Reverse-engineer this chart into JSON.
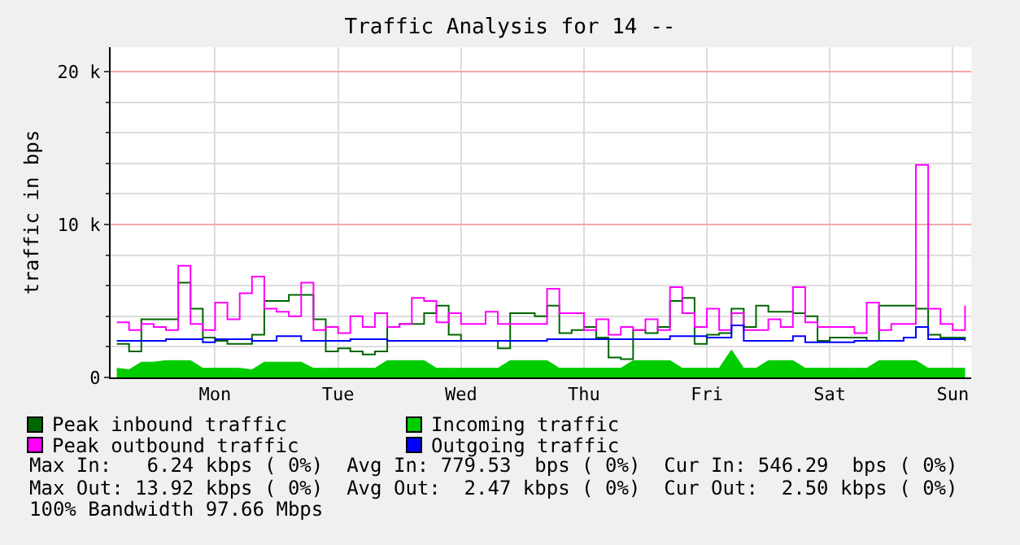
{
  "chart_data": {
    "type": "step",
    "title": "Traffic Analysis for 14 --",
    "ylabel": "traffic in bps",
    "categories": [
      null,
      null,
      null,
      null,
      null,
      null,
      null,
      null,
      "Mon",
      null,
      null,
      null,
      null,
      null,
      null,
      null,
      null,
      null,
      "Tue",
      null,
      null,
      null,
      null,
      null,
      null,
      null,
      null,
      null,
      "Wed",
      null,
      null,
      null,
      null,
      null,
      null,
      null,
      null,
      null,
      "Thu",
      null,
      null,
      null,
      null,
      null,
      null,
      null,
      null,
      null,
      "Fri",
      null,
      null,
      null,
      null,
      null,
      null,
      null,
      null,
      null,
      "Sat",
      null,
      null,
      null,
      null,
      null,
      null,
      null,
      null,
      null,
      "Sun",
      null
    ],
    "ylim": [
      0,
      21600
    ],
    "yticks": [
      {
        "value": 0,
        "label": "0"
      },
      {
        "value": 2000,
        "label": null
      },
      {
        "value": 4000,
        "label": null
      },
      {
        "value": 6000,
        "label": null
      },
      {
        "value": 8000,
        "label": null
      },
      {
        "value": 10000,
        "label": "10 k"
      },
      {
        "value": 12000,
        "label": null
      },
      {
        "value": 14000,
        "label": null
      },
      {
        "value": 16000,
        "label": null
      },
      {
        "value": 18000,
        "label": null
      },
      {
        "value": 20000,
        "label": "20 k"
      }
    ],
    "grid": true,
    "legend": "bottom",
    "marker": "none",
    "line_style": "solid",
    "series": [
      {
        "name": "Peak inbound traffic",
        "color": "#006600",
        "values": [
          2200,
          1700,
          3800,
          3800,
          3800,
          6200,
          4500,
          2600,
          2400,
          2200,
          2200,
          2800,
          5000,
          5000,
          5400,
          5400,
          3800,
          1700,
          1900,
          1700,
          1500,
          1700,
          3300,
          3500,
          3500,
          4200,
          4700,
          2800,
          2400,
          2400,
          2400,
          1900,
          4200,
          4200,
          4000,
          4700,
          2900,
          3100,
          3300,
          2600,
          1300,
          1200,
          3100,
          2900,
          3300,
          5000,
          5200,
          2200,
          2800,
          2900,
          4500,
          3300,
          4700,
          4300,
          4300,
          4200,
          4000,
          2400,
          2600,
          2600,
          2600,
          2400,
          4700,
          4700,
          4700,
          4500,
          2800,
          2600,
          2600,
          2400
        ]
      },
      {
        "name": "Incoming traffic",
        "color": "#00cc00",
        "type": "area",
        "values": [
          600,
          500,
          1000,
          1000,
          1100,
          1100,
          1100,
          600,
          600,
          600,
          600,
          500,
          1000,
          1000,
          1000,
          1000,
          600,
          600,
          600,
          600,
          600,
          600,
          1100,
          1100,
          1100,
          1100,
          600,
          600,
          600,
          600,
          600,
          600,
          1100,
          1100,
          1100,
          1100,
          600,
          600,
          600,
          600,
          600,
          600,
          1100,
          1100,
          1100,
          1100,
          600,
          600,
          600,
          600,
          1800,
          600,
          600,
          1100,
          1100,
          1100,
          600,
          600,
          600,
          600,
          600,
          600,
          1100,
          1100,
          1100,
          1100,
          600,
          600,
          600,
          600
        ]
      },
      {
        "name": "Peak outbound traffic",
        "color": "#ff00ff",
        "values": [
          3600,
          3100,
          3500,
          3300,
          3100,
          7300,
          3500,
          3100,
          4900,
          3800,
          5500,
          6600,
          4500,
          4300,
          4000,
          6200,
          3100,
          3300,
          2900,
          4000,
          3300,
          4200,
          3300,
          3500,
          5200,
          5000,
          3600,
          4200,
          3500,
          3500,
          4300,
          3500,
          3500,
          3500,
          3500,
          5800,
          4200,
          4200,
          3100,
          3800,
          2800,
          3300,
          3100,
          3800,
          3100,
          5900,
          4200,
          3300,
          4500,
          3100,
          4200,
          3100,
          3100,
          3800,
          3300,
          5900,
          3600,
          3300,
          3300,
          3300,
          2900,
          4900,
          3100,
          3500,
          3500,
          13900,
          4500,
          3500,
          3100,
          4700
        ]
      },
      {
        "name": "Outgoing traffic",
        "color": "#0000ff",
        "values": [
          2400,
          2400,
          2400,
          2400,
          2500,
          2500,
          2500,
          2300,
          2500,
          2500,
          2500,
          2400,
          2400,
          2700,
          2700,
          2400,
          2400,
          2400,
          2400,
          2500,
          2500,
          2500,
          2400,
          2400,
          2400,
          2400,
          2400,
          2400,
          2400,
          2400,
          2400,
          2400,
          2400,
          2400,
          2400,
          2500,
          2500,
          2500,
          2500,
          2500,
          2500,
          2500,
          2500,
          2500,
          2500,
          2700,
          2700,
          2700,
          2600,
          2600,
          3400,
          2400,
          2400,
          2400,
          2400,
          2700,
          2300,
          2300,
          2300,
          2300,
          2400,
          2400,
          2400,
          2400,
          2600,
          3300,
          2500,
          2500,
          2500,
          2500
        ]
      }
    ],
    "annotations": [
      "Max In:   6.24 kbps ( 0%)  Avg In: 779.53  bps ( 0%)  Cur In: 546.29  bps ( 0%)",
      "Max Out: 13.92 kbps ( 0%)  Avg Out:  2.47 kbps ( 0%)  Cur Out:  2.50 kbps ( 0%)",
      "100% Bandwidth 97.66 Mbps"
    ]
  }
}
